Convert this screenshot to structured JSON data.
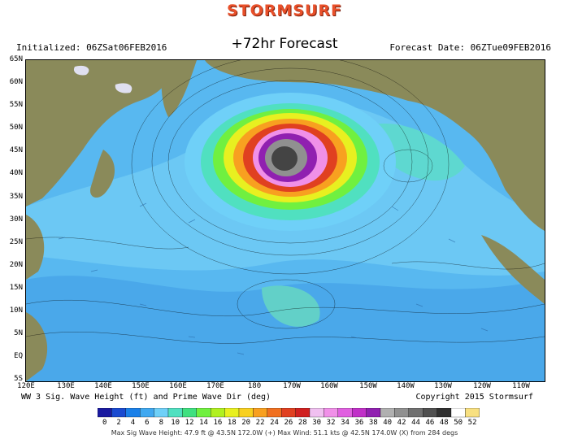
{
  "header": {
    "logo": "STORMSURF",
    "subtitle": "+72hr Forecast",
    "initialized": "Initialized: 06ZSat06FEB2016",
    "forecast_date": "Forecast Date: 06ZTue09FEB2016"
  },
  "map": {
    "lat_labels": [
      "65N",
      "60N",
      "55N",
      "50N",
      "45N",
      "40N",
      "35N",
      "30N",
      "25N",
      "20N",
      "15N",
      "10N",
      "5N",
      "EQ",
      "5S"
    ],
    "lon_labels": [
      "120E",
      "130E",
      "140E",
      "150E",
      "160E",
      "170E",
      "180",
      "170W",
      "160W",
      "150W",
      "140W",
      "130W",
      "120W",
      "110W"
    ],
    "colors": {
      "land": "#8a8a5a",
      "ocean_base": "#58b8f0",
      "storm_core": "#444444"
    }
  },
  "footer": {
    "left": "WW 3 Sig. Wave Height (ft) and Prime Wave Dir (deg)",
    "right": "Copyright 2015 Stormsurf",
    "scale_labels": [
      "0",
      "2",
      "4",
      "6",
      "8",
      "10",
      "12",
      "14",
      "16",
      "18",
      "20",
      "22",
      "24",
      "26",
      "28",
      "30",
      "32",
      "34",
      "36",
      "38",
      "40",
      "42",
      "44",
      "46",
      "48",
      "50",
      "52"
    ],
    "scale_colors": [
      "#1a1aa0",
      "#1a4ad0",
      "#1a80e8",
      "#40a8f0",
      "#6fd0f8",
      "#50e0c0",
      "#40e080",
      "#70f040",
      "#b0f020",
      "#e8f020",
      "#f8d020",
      "#f8a020",
      "#f07020",
      "#e04020",
      "#d02020",
      "#f0c0f0",
      "#f090e8",
      "#e060e0",
      "#c030c8",
      "#9020b0",
      "#b0b0b0",
      "#909090",
      "#707070",
      "#505050",
      "#303030",
      "#ffffff",
      "#f8e080"
    ],
    "max_stats": "Max Sig Wave Height: 47.9 ft @ 43.5N 172.0W (+)  Max Wind: 51.1 kts @ 42.5N 174.0W (X) from 284 degs"
  }
}
